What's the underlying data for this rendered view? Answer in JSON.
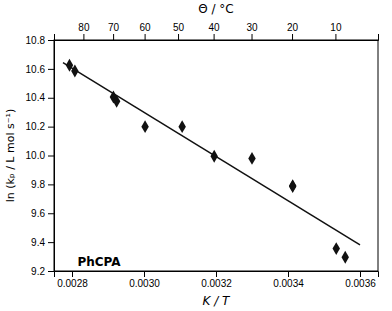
{
  "chart_data": {
    "type": "scatter",
    "x2label": "Θ / °C",
    "xlabel": "K / T",
    "ylabel": "ln (kₚ / L mol s⁻¹)",
    "annotations": [
      {
        "text": "PhCPA",
        "x": 0.002815,
        "y": 9.235
      }
    ],
    "xlim": [
      0.00275,
      0.00365
    ],
    "ylim": [
      9.2,
      10.8
    ],
    "xticks": [
      0.0028,
      {
        "value": 0.003,
        "label": "0.0030"
      },
      0.0032,
      0.0034,
      0.0036
    ],
    "yticks": [
      9.2,
      9.4,
      9.6,
      9.8,
      {
        "value": 10,
        "label": "10.0"
      },
      10.2,
      10.4,
      10.6,
      10.8
    ],
    "x2ticks": [
      {
        "value": 0.0028316579,
        "label": "80"
      },
      {
        "value": 0.0029141775,
        "label": "70"
      },
      {
        "value": 0.0030016509,
        "label": "60"
      },
      {
        "value": 0.0030945381,
        "label": "50"
      },
      {
        "value": 0.0031933578,
        "label": "40"
      },
      {
        "value": 0.003298697,
        "label": "30"
      },
      {
        "value": 0.0034112229,
        "label": "20"
      },
      {
        "value": 0.003531697,
        "label": "10"
      }
    ],
    "series": [
      {
        "type": "line",
        "color": "#111111",
        "x": [
          0.002775,
          0.0036
        ],
        "values": [
          10.6439,
          9.3812
        ]
      },
      {
        "type": "scatter",
        "marker": "diamond",
        "color": "#111111",
        "x": [
          0.002793,
          0.002808,
          0.002915,
          0.002924,
          0.003003,
          0.003106,
          0.003195,
          0.0033,
          0.003413,
          0.003413,
          0.003534,
          0.003559
        ],
        "values": [
          10.625,
          10.585,
          10.405,
          10.375,
          10.2,
          10.2,
          9.995,
          9.98,
          9.79,
          9.785,
          9.355,
          9.295
        ]
      }
    ]
  }
}
